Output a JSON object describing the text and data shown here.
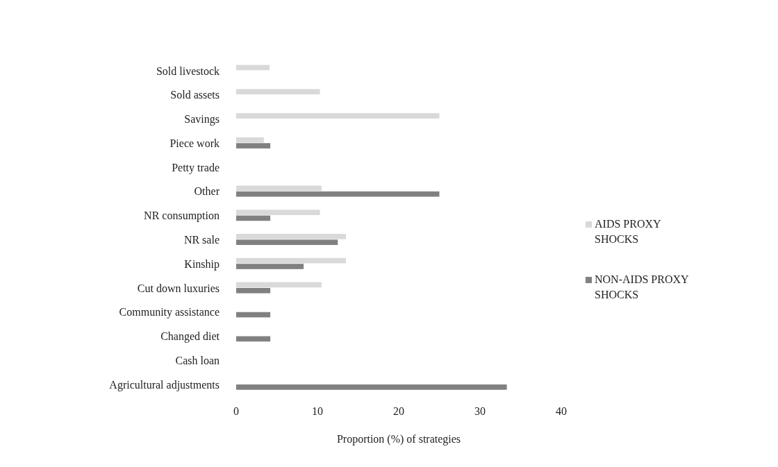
{
  "chart_data": {
    "type": "bar",
    "orientation": "horizontal",
    "xlabel": "Proportion (%) of strategies",
    "categories": [
      "Sold livestock",
      "Sold assets",
      "Savings",
      "Piece work",
      "Petty trade",
      "Other",
      "NR consumption",
      "NR sale",
      "Kinship",
      "Cut down luxuries",
      "Community assistance",
      "Changed diet",
      "Cash loan",
      "Agricultural adjustments"
    ],
    "series": [
      {
        "name": "AIDS PROXY SHOCKS",
        "color": "#d9d9d9",
        "values": [
          4.1,
          10.3,
          25,
          3.4,
          0,
          10.5,
          10.3,
          13.5,
          13.5,
          10.5,
          0,
          0,
          0,
          0
        ]
      },
      {
        "name": "NON-AIDS PROXY SHOCKS",
        "color": "#808080",
        "values": [
          0,
          0,
          0,
          4.2,
          0,
          25,
          4.2,
          12.5,
          8.3,
          4.2,
          4.2,
          4.2,
          0,
          33.3
        ]
      }
    ],
    "xlim": [
      0,
      40
    ],
    "xticks": [
      0,
      10,
      20,
      30,
      40
    ],
    "grid": false,
    "legend": "right"
  }
}
